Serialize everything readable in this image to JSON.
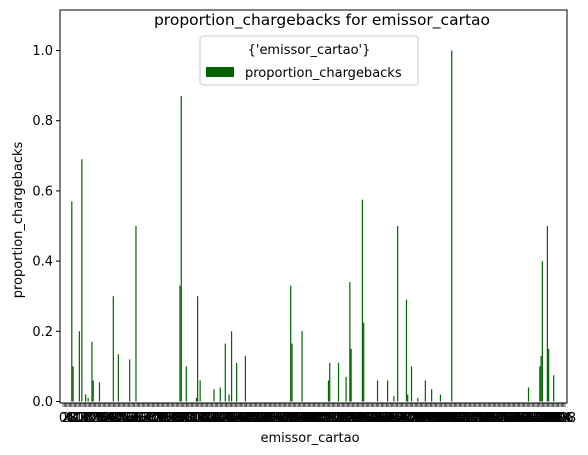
{
  "chart_data": {
    "type": "bar",
    "title": "proportion_chargebacks for emissor_cartao",
    "xlabel": "emissor_cartao",
    "ylabel": "proportion_chargebacks",
    "ylim": [
      0,
      1.05
    ],
    "yticks": [
      "0.0",
      "0.2",
      "0.4",
      "0.6",
      "0.8",
      "1.0"
    ],
    "grid": false,
    "legend": {
      "title": "{'emissor_cartao'}",
      "placement": "top-center",
      "entries": [
        "proportion_chargebacks"
      ]
    },
    "color": "#006400",
    "category_count": 400,
    "x_tick_labels_note": "category tick labels overlap and are unreadable",
    "series": [
      {
        "name": "proportion_chargebacks",
        "values": [
          {
            "i": 7,
            "v": 0.57
          },
          {
            "i": 8,
            "v": 0.1
          },
          {
            "i": 13,
            "v": 0.2
          },
          {
            "i": 15,
            "v": 0.69
          },
          {
            "i": 18,
            "v": 0.02
          },
          {
            "i": 20,
            "v": 0.01
          },
          {
            "i": 23,
            "v": 0.17
          },
          {
            "i": 24,
            "v": 0.06
          },
          {
            "i": 29,
            "v": 0.055
          },
          {
            "i": 40,
            "v": 0.3
          },
          {
            "i": 44,
            "v": 0.135
          },
          {
            "i": 53,
            "v": 0.12
          },
          {
            "i": 58,
            "v": 0.5
          },
          {
            "i": 93,
            "v": 0.33
          },
          {
            "i": 94,
            "v": 0.87
          },
          {
            "i": 98,
            "v": 0.1
          },
          {
            "i": 106,
            "v": 0.01
          },
          {
            "i": 107,
            "v": 0.3
          },
          {
            "i": 109,
            "v": 0.06
          },
          {
            "i": 120,
            "v": 0.035
          },
          {
            "i": 125,
            "v": 0.04
          },
          {
            "i": 129,
            "v": 0.165
          },
          {
            "i": 132,
            "v": 0.02
          },
          {
            "i": 134,
            "v": 0.2
          },
          {
            "i": 138,
            "v": 0.11
          },
          {
            "i": 145,
            "v": 0.13
          },
          {
            "i": 181,
            "v": 0.33
          },
          {
            "i": 182,
            "v": 0.165
          },
          {
            "i": 190,
            "v": 0.2
          },
          {
            "i": 211,
            "v": 0.06
          },
          {
            "i": 212,
            "v": 0.11
          },
          {
            "i": 219,
            "v": 0.11
          },
          {
            "i": 225,
            "v": 0.07
          },
          {
            "i": 228,
            "v": 0.34
          },
          {
            "i": 229,
            "v": 0.15
          },
          {
            "i": 238,
            "v": 0.575
          },
          {
            "i": 239,
            "v": 0.225
          },
          {
            "i": 250,
            "v": 0.06
          },
          {
            "i": 258,
            "v": 0.06
          },
          {
            "i": 263,
            "v": 0.015
          },
          {
            "i": 266,
            "v": 0.5
          },
          {
            "i": 273,
            "v": 0.29
          },
          {
            "i": 274,
            "v": 0.02
          },
          {
            "i": 277,
            "v": 0.1
          },
          {
            "i": 282,
            "v": 0.01
          },
          {
            "i": 288,
            "v": 0.06
          },
          {
            "i": 293,
            "v": 0.035
          },
          {
            "i": 300,
            "v": 0.02
          },
          {
            "i": 309,
            "v": 1.0
          },
          {
            "i": 370,
            "v": 0.04
          },
          {
            "i": 379,
            "v": 0.1
          },
          {
            "i": 380,
            "v": 0.13
          },
          {
            "i": 381,
            "v": 0.4
          },
          {
            "i": 385,
            "v": 0.5
          },
          {
            "i": 386,
            "v": 0.15
          },
          {
            "i": 390,
            "v": 0.075
          }
        ]
      }
    ]
  }
}
